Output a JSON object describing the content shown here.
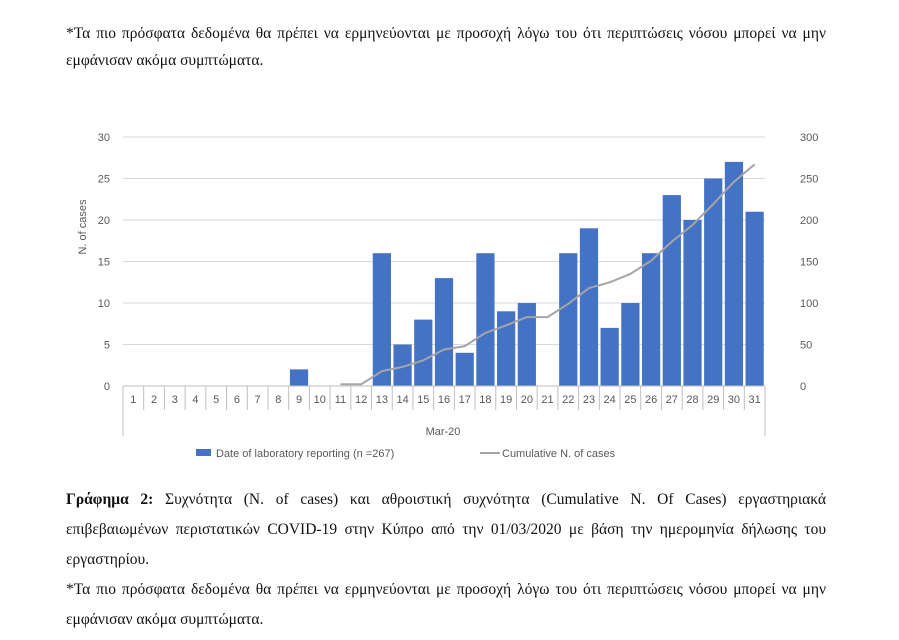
{
  "top_note": "*Τα πιο πρόσφατα δεδομένα θα πρέπει να ερμηνεύονται με προσοχή λόγω του ότι περιπτώσεις νόσου μπορεί να μην εμφάνισαν ακόμα συμπτώματα.",
  "caption": {
    "label": "Γράφημα 2:",
    "text": " Συχνότητα (N. of cases) και αθροιστική συχνότητα (Cumulative N. Of Cases) εργαστηριακά επιβεβαιωμένων περιστατικών COVID-19 στην Κύπρο από την 01/03/2020 με βάση την ημερομηνία δήλωσης του εργαστηρίου."
  },
  "bottom_note": "*Τα πιο πρόσφατα δεδομένα θα πρέπει να ερμηνεύονται με προσοχή λόγω του ότι περιπτώσεις νόσου μπορεί να μην εμφάνισαν ακόμα συμπτώματα.",
  "chart_data": {
    "type": "bar",
    "xlabel": "Mar-20",
    "ylabel": "N. of cases",
    "ylim": [
      0,
      30
    ],
    "y2lim": [
      0,
      300
    ],
    "yticks": [
      "0",
      "5",
      "10",
      "15",
      "20",
      "25",
      "30"
    ],
    "y2ticks": [
      "0",
      "50",
      "100",
      "150",
      "200",
      "250",
      "300"
    ],
    "grid": true,
    "legend_position": "bottom",
    "categories": [
      "1",
      "2",
      "3",
      "4",
      "5",
      "6",
      "7",
      "8",
      "9",
      "10",
      "11",
      "12",
      "13",
      "14",
      "15",
      "16",
      "17",
      "18",
      "19",
      "20",
      "21",
      "22",
      "23",
      "24",
      "25",
      "26",
      "27",
      "28",
      "29",
      "30",
      "31"
    ],
    "series": [
      {
        "name": "Date of laboratory reporting (n =267)",
        "type": "bar",
        "axis": "left",
        "color": "#4472C4",
        "values": [
          0,
          0,
          0,
          0,
          0,
          0,
          0,
          0,
          2,
          0,
          0,
          0,
          16,
          5,
          8,
          13,
          4,
          16,
          9,
          10,
          0,
          16,
          19,
          7,
          10,
          16,
          23,
          20,
          25,
          27,
          21
        ]
      },
      {
        "name": "Cumulative N. of cases",
        "type": "line",
        "axis": "right",
        "color": "#A5A5A5",
        "values": [
          0,
          0,
          0,
          0,
          0,
          0,
          0,
          0,
          2,
          2,
          2,
          2,
          18,
          23,
          31,
          44,
          48,
          64,
          73,
          83,
          83,
          99,
          118,
          125,
          135,
          151,
          174,
          194,
          219,
          246,
          267
        ]
      }
    ]
  }
}
